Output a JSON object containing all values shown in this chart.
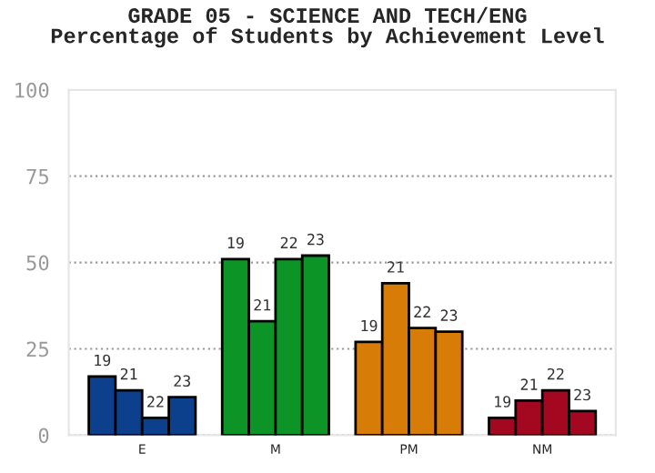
{
  "chart_data": {
    "type": "bar",
    "title": "GRADE 05 - SCIENCE AND TECH/ENG\nPercentage of Students by Achievement Level",
    "categories": [
      "E",
      "M",
      "PM",
      "NM"
    ],
    "series": [
      {
        "name": "19",
        "colors": [
          "#0c3f8c",
          "#0d9426",
          "#d67c07",
          "#a30820"
        ],
        "values": [
          17,
          51,
          27,
          5
        ]
      },
      {
        "name": "21",
        "colors": [
          "#0c3f8c",
          "#0d9426",
          "#d67c07",
          "#a30820"
        ],
        "values": [
          13,
          33,
          44,
          10
        ]
      },
      {
        "name": "22",
        "colors": [
          "#0c3f8c",
          "#0d9426",
          "#d67c07",
          "#a30820"
        ],
        "values": [
          5,
          51,
          31,
          13
        ]
      },
      {
        "name": "23",
        "colors": [
          "#0c3f8c",
          "#0d9426",
          "#d67c07",
          "#a30820"
        ],
        "values": [
          11,
          52,
          30,
          7
        ]
      }
    ],
    "ylim": [
      0,
      100
    ],
    "yticks": [
      0,
      25,
      50,
      75,
      100
    ],
    "grid": "y",
    "legend": false
  }
}
